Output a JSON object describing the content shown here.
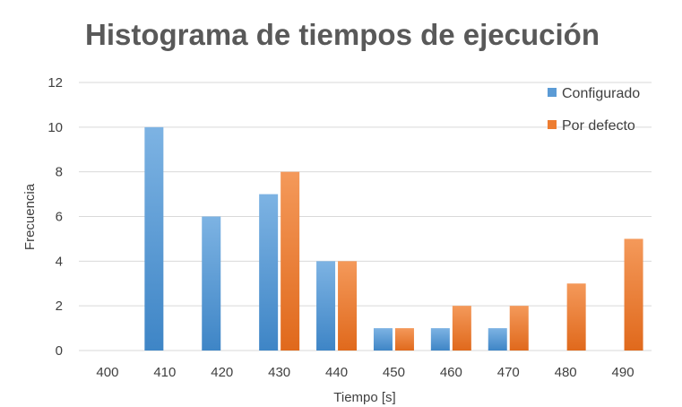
{
  "chart_data": {
    "type": "bar",
    "title": "Histograma de tiempos de ejecución",
    "xlabel": "Tiempo [s]",
    "ylabel": "Frecuencia",
    "categories": [
      "400",
      "410",
      "420",
      "430",
      "440",
      "450",
      "460",
      "470",
      "480",
      "490"
    ],
    "yticks": [
      "0",
      "2",
      "4",
      "6",
      "8",
      "10",
      "12"
    ],
    "ylim": [
      0,
      12
    ],
    "grid": true,
    "legend_position": "right",
    "series": [
      {
        "name": "Configurado",
        "color": "#5B9BD5",
        "values": [
          0,
          10,
          6,
          7,
          4,
          1,
          1,
          1,
          0,
          0
        ]
      },
      {
        "name": "Por defecto",
        "color": "#ED7D31",
        "values": [
          0,
          0,
          0,
          8,
          4,
          1,
          2,
          2,
          3,
          5
        ]
      }
    ]
  }
}
